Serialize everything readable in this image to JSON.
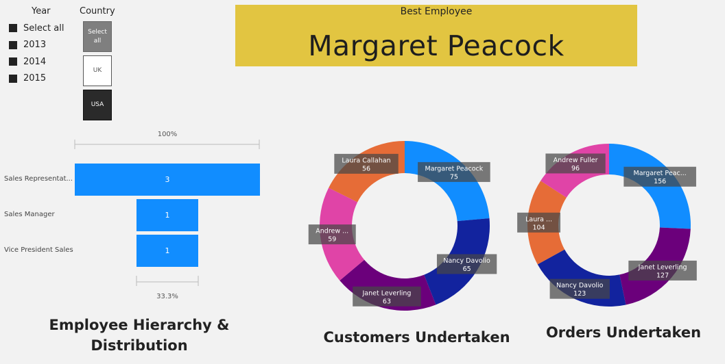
{
  "year_slicer": {
    "title": "Year",
    "items": [
      "Select all",
      "2013",
      "2014",
      "2015"
    ]
  },
  "country_slicer": {
    "title": "Country",
    "tiles": [
      {
        "label_line1": "Select",
        "label_line2": "all",
        "bg": "#7f7f7f",
        "fg": "#ffffff"
      },
      {
        "label_line1": "UK",
        "label_line2": "",
        "bg": "#ffffff",
        "fg": "#555555"
      },
      {
        "label_line1": "USA",
        "label_line2": "",
        "bg": "#2a2a2a",
        "fg": "#ffffff"
      }
    ]
  },
  "card": {
    "label": "Best Employee",
    "value": "Margaret Peacock",
    "bg": "#e2c541"
  },
  "funnel": {
    "top_pct": "100%",
    "bottom_pct": "33.3%",
    "title_line1": "Employee Hierarchy &",
    "title_line2": "Distribution",
    "bar_color": "#118dff"
  },
  "customers_title": "Customers Undertaken",
  "orders_title": "Orders Undertaken",
  "chart_data": [
    {
      "type": "bar",
      "orientation": "funnel",
      "categories": [
        "Sales Representat...",
        "Sales Manager",
        "Vice President Sales"
      ],
      "values": [
        3,
        1,
        1
      ],
      "title": "Employee Hierarchy & Distribution"
    },
    {
      "type": "pie",
      "donut": true,
      "title": "Customers Undertaken",
      "slices": [
        {
          "label": "Margaret Peacock",
          "value": 75,
          "color": "#118dff"
        },
        {
          "label": "Nancy Davolio",
          "value": 65,
          "color": "#12239e"
        },
        {
          "label": "Janet Leverling",
          "value": 63,
          "color": "#6b007b"
        },
        {
          "label": "Andrew ...",
          "value": 59,
          "color": "#e044a7"
        },
        {
          "label": "Laura Callahan",
          "value": 56,
          "color": "#e66c37"
        }
      ]
    },
    {
      "type": "pie",
      "donut": true,
      "title": "Orders Undertaken",
      "slices": [
        {
          "label": "Margaret Peac...",
          "value": 156,
          "color": "#118dff"
        },
        {
          "label": "Janet Leverling",
          "value": 127,
          "color": "#6b007b"
        },
        {
          "label": "Nancy Davolio",
          "value": 123,
          "color": "#12239e"
        },
        {
          "label": "Laura ...",
          "value": 104,
          "color": "#e66c37"
        },
        {
          "label": "Andrew Fuller",
          "value": 96,
          "color": "#e044a7"
        }
      ]
    }
  ]
}
